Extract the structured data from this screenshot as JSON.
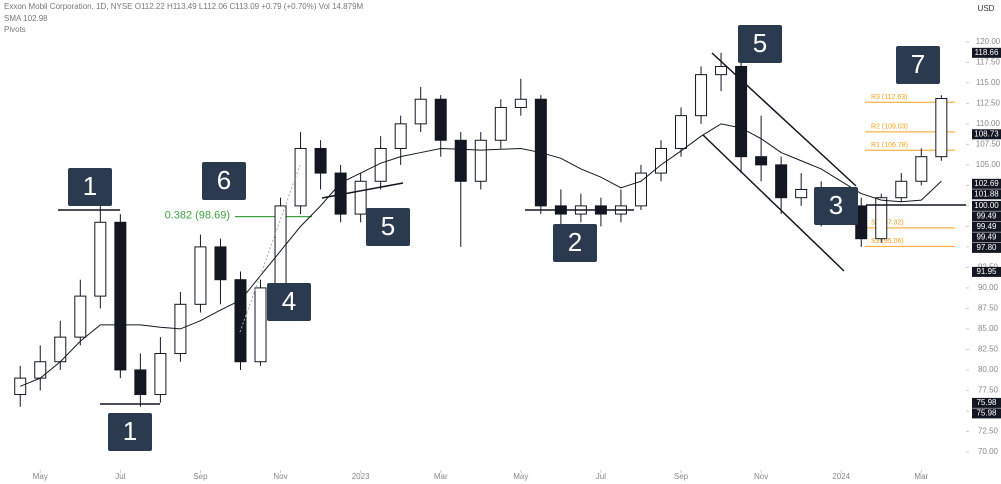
{
  "chart_data": {
    "type": "candlestick",
    "legend_lines": [
      "Exxon Mobil Corporation, 1D, NYSE  O112.22 H113.49 L112.06 C113.09 +0.79 (+0.70%)  Vol 14.879M",
      "SMA 102.98",
      "Pivots"
    ],
    "currency": "USD",
    "x": [
      -0.5,
      0,
      0.5,
      1,
      1.5,
      2,
      2.5,
      3,
      3.5,
      4,
      4.5,
      5,
      5.5,
      6,
      6.5,
      7,
      7.5,
      8,
      8.5,
      9,
      9.5,
      10,
      10.5,
      11,
      11.5,
      12,
      12.5,
      13,
      13.5,
      14,
      14.5,
      15,
      15.5,
      16,
      16.5,
      17,
      17.5,
      18,
      18.5,
      19,
      19.5,
      20,
      20.5,
      21,
      21.5,
      22,
      22.5
    ],
    "open": [
      77,
      79,
      81,
      84,
      89,
      98,
      80,
      77,
      82,
      88,
      95,
      91,
      81,
      90,
      100,
      107,
      104,
      99,
      103,
      107,
      110,
      113,
      108,
      103,
      108,
      112,
      113,
      100,
      99,
      100,
      99,
      100,
      104,
      107,
      111,
      116,
      117,
      106,
      105,
      101,
      102,
      99,
      100,
      96,
      101,
      103,
      106
    ],
    "high": [
      80.5,
      83,
      86,
      91,
      100,
      99,
      82,
      84,
      89.5,
      96.5,
      96,
      92,
      91,
      101,
      109,
      108,
      105,
      104,
      108.5,
      111,
      114.5,
      113.5,
      109,
      109,
      113,
      115.5,
      113.5,
      102,
      101.5,
      101,
      102,
      105,
      108,
      112,
      117,
      118.66,
      117.5,
      111,
      106,
      104,
      103,
      101,
      101,
      101.5,
      104,
      107,
      113.49
    ],
    "low": [
      75.5,
      77.5,
      80,
      83,
      87.5,
      79,
      75.5,
      76,
      81,
      87,
      88,
      80,
      80.5,
      89,
      99,
      102,
      98,
      98,
      102,
      105,
      109,
      106,
      95,
      102,
      107,
      111,
      99,
      97.5,
      98,
      97.5,
      98,
      99.5,
      103,
      106,
      110,
      114,
      104,
      103,
      99,
      100,
      97.5,
      98,
      95,
      95.5,
      100.5,
      102.5,
      105.5
    ],
    "close": [
      79,
      81,
      84,
      89,
      98,
      80,
      77,
      82,
      88,
      95,
      91,
      81,
      90,
      100,
      107,
      104,
      99,
      103,
      107,
      110,
      113,
      108,
      103,
      108,
      112,
      113,
      100,
      99,
      100,
      99,
      100,
      104,
      107,
      111,
      116,
      117,
      106,
      105,
      101,
      102,
      99,
      100,
      96,
      101,
      103,
      106,
      113.09
    ],
    "up_color": "#ffffff",
    "down_color": "#131722",
    "sma": {
      "name": "SMA",
      "color": "#131722",
      "values": [
        78,
        79,
        81,
        83.5,
        85.5,
        85.5,
        85.5,
        85.2,
        85,
        86,
        87.3,
        88.5,
        91.5,
        94.5,
        97.5,
        100,
        102.8,
        104,
        105.2,
        106,
        106.5,
        107,
        106.9,
        106.8,
        106.9,
        107,
        106.5,
        105.8,
        104.5,
        103.5,
        102.2,
        103,
        105,
        106.7,
        108.5,
        110,
        109.5,
        108.2,
        106.5,
        105.5,
        104.5,
        103,
        101.5,
        100.7,
        100.5,
        100.7,
        103
      ]
    },
    "xlim": [
      -1.005,
      23.116
    ],
    "ylim": [
      67.8,
      125.1
    ],
    "xticks": [
      {
        "value": 0,
        "label": "May"
      },
      {
        "value": 2,
        "label": "Jul"
      },
      {
        "value": 4,
        "label": "Sep"
      },
      {
        "value": 6,
        "label": "Nov"
      },
      {
        "value": 8,
        "label": "2023"
      },
      {
        "value": 10,
        "label": "Mar"
      },
      {
        "value": 12,
        "label": "May"
      },
      {
        "value": 14,
        "label": "Jul"
      },
      {
        "value": 16,
        "label": "Sep"
      },
      {
        "value": 18,
        "label": "Nov"
      },
      {
        "value": 20,
        "label": "2024"
      },
      {
        "value": 22,
        "label": "Mar"
      }
    ],
    "yticks": [
      {
        "value": 70,
        "label": "70.00"
      },
      {
        "value": 72.5,
        "label": "72.50"
      },
      {
        "value": 75,
        "label": "75.00"
      },
      {
        "value": 77.5,
        "label": "77.50"
      },
      {
        "value": 80,
        "label": "80.00"
      },
      {
        "value": 82.5,
        "label": "82.50"
      },
      {
        "value": 85,
        "label": "85.00"
      },
      {
        "value": 87.5,
        "label": "87.50"
      },
      {
        "value": 90,
        "label": "90.00"
      },
      {
        "value": 92.5,
        "label": "92.50"
      },
      {
        "value": 95,
        "label": "95.00"
      },
      {
        "value": 97.5,
        "label": "97.50"
      },
      {
        "value": 100,
        "label": "100.00"
      },
      {
        "value": 102.5,
        "label": "102.50"
      },
      {
        "value": 105,
        "label": "105.00"
      },
      {
        "value": 107.5,
        "label": "107.50"
      },
      {
        "value": 110,
        "label": "110.00"
      },
      {
        "value": 112.5,
        "label": "112.50"
      },
      {
        "value": 115,
        "label": "115.00"
      },
      {
        "value": 117.5,
        "label": "117.50"
      },
      {
        "value": 120,
        "label": "120.00"
      }
    ],
    "price_tags": [
      {
        "value": 118.66,
        "label": "118.66"
      },
      {
        "value": 108.73,
        "label": "108.73"
      },
      {
        "value": 102.69,
        "label": "102.69"
      },
      {
        "value": 101.88,
        "label": "101.88"
      },
      {
        "value": 100,
        "label": "100.00"
      },
      {
        "value": 99.49,
        "label": "99.49"
      },
      {
        "value": 99.49,
        "label": "99.49"
      },
      {
        "value": 99.49,
        "label": "99.49"
      },
      {
        "value": 97.8,
        "label": "97.80"
      },
      {
        "value": 91.95,
        "label": "91.95"
      },
      {
        "value": 75.98,
        "label": "75.98"
      },
      {
        "value": 75.98,
        "label": "75.98"
      }
    ],
    "pivots": [
      {
        "value": 112.63,
        "label": "R3 (112.63)"
      },
      {
        "value": 109.03,
        "label": "R2 (109.03)"
      },
      {
        "value": 106.78,
        "label": "R1 (106.78)"
      },
      {
        "value": 97.32,
        "label": "S2 (97.32)"
      },
      {
        "value": 95.06,
        "label": "S3 (95.06)"
      }
    ],
    "pivot_color": "#f7a21b",
    "fib": {
      "value": 98.69,
      "label": "0.382 (98.69)",
      "color": "#43a047"
    },
    "annotations": [
      "1",
      "1",
      "6",
      "5",
      "4",
      "2",
      "5",
      "3",
      "7"
    ]
  }
}
